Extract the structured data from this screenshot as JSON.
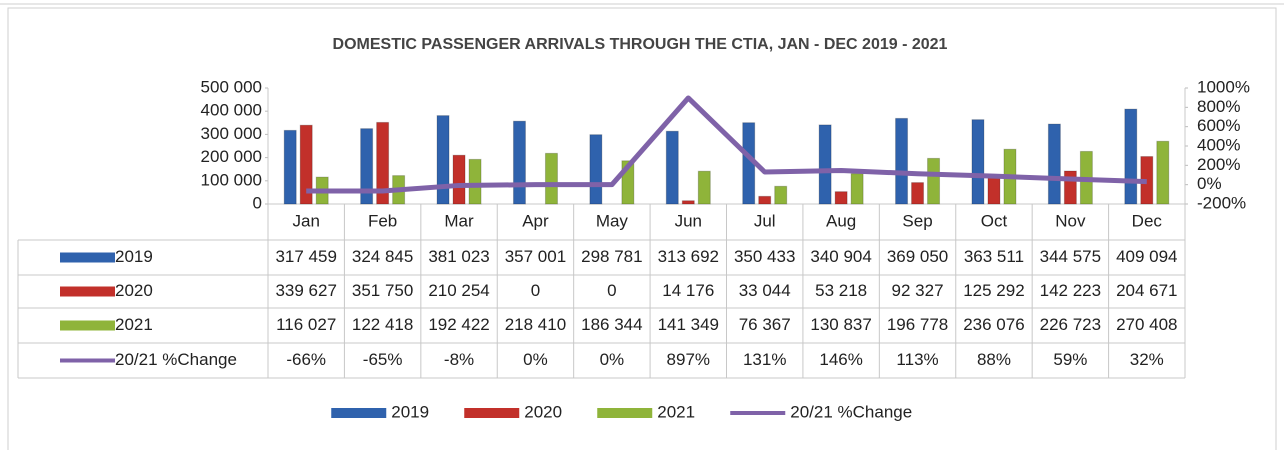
{
  "chart_data": {
    "type": "bar",
    "title": "DOMESTIC PASSENGER ARRIVALS THROUGH THE CTIA, JAN - DEC 2019 - 2021",
    "categories": [
      "Jan",
      "Feb",
      "Mar",
      "Apr",
      "May",
      "Jun",
      "Jul",
      "Aug",
      "Sep",
      "Oct",
      "Nov",
      "Dec"
    ],
    "series": [
      {
        "name": "2019",
        "color": "#2f62ad",
        "values": [
          317459,
          324845,
          381023,
          357001,
          298781,
          313692,
          350433,
          340904,
          369050,
          363511,
          344575,
          409094
        ],
        "value_labels": [
          "317 459",
          "324 845",
          "381 023",
          "357 001",
          "298 781",
          "313 692",
          "350 433",
          "340 904",
          "369 050",
          "363 511",
          "344 575",
          "409 094"
        ]
      },
      {
        "name": "2020",
        "color": "#c2302a",
        "values": [
          339627,
          351750,
          210254,
          0,
          0,
          14176,
          33044,
          53218,
          92327,
          125292,
          142223,
          204671
        ],
        "value_labels": [
          "339 627",
          "351 750",
          "210 254",
          "0",
          "0",
          "14 176",
          "33 044",
          "53 218",
          "92 327",
          "125 292",
          "142 223",
          "204 671"
        ]
      },
      {
        "name": "2021",
        "color": "#8fb43a",
        "values": [
          116027,
          122418,
          192422,
          218410,
          186344,
          141349,
          76367,
          130837,
          196778,
          236076,
          226723,
          270408
        ],
        "value_labels": [
          "116 027",
          "122 418",
          "192 422",
          "218 410",
          "186 344",
          "141 349",
          "76 367",
          "130 837",
          "196 778",
          "236 076",
          "226 723",
          "270 408"
        ]
      },
      {
        "name": "20/21 %Change",
        "color": "#7f62a8",
        "type": "line",
        "axis": "y2",
        "values": [
          -66,
          -65,
          -8,
          0,
          0,
          897,
          131,
          146,
          113,
          88,
          59,
          32
        ],
        "value_labels": [
          "-66%",
          "-65%",
          "-8%",
          "0%",
          "0%",
          "897%",
          "131%",
          "146%",
          "113%",
          "88%",
          "59%",
          "32%"
        ]
      }
    ],
    "ylim": [
      0,
      500000
    ],
    "yticks": [
      0,
      {
        "value": 100000,
        "label": "100 000"
      },
      {
        "value": 200000,
        "label": "200 000"
      },
      {
        "value": 300000,
        "label": "300 000"
      },
      {
        "value": 400000,
        "label": "400 000"
      },
      {
        "value": 500000,
        "label": "500 000"
      }
    ],
    "y2lim": [
      -200,
      1000
    ],
    "y2ticks": [
      {
        "value": -200,
        "label": "-200%"
      },
      {
        "value": 0,
        "label": "0%"
      },
      {
        "value": 200,
        "label": "200%"
      },
      {
        "value": 400,
        "label": "400%"
      },
      {
        "value": 600,
        "label": "600%"
      },
      {
        "value": 800,
        "label": "800%"
      },
      {
        "value": 1000,
        "label": "1000%"
      }
    ],
    "legend": "bottom"
  }
}
